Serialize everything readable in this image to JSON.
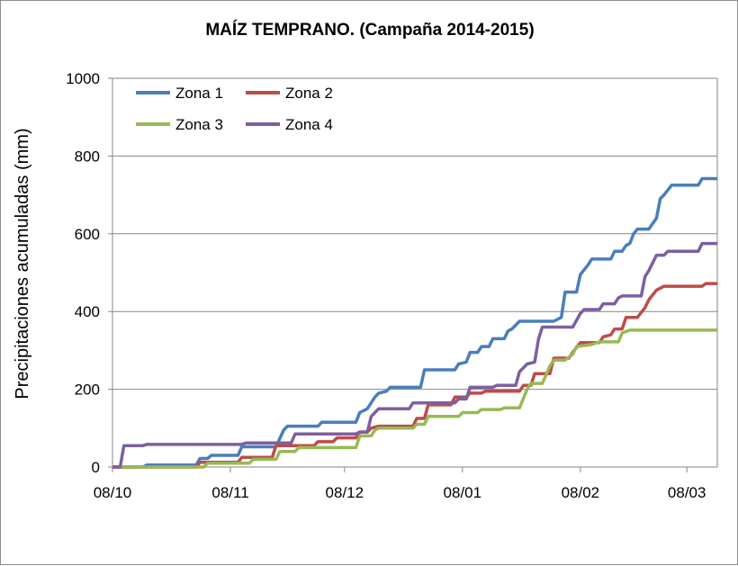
{
  "chart_data": {
    "type": "line",
    "title": "MAÍZ TEMPRANO. (Campaña 2014-2015)",
    "xlabel": "",
    "ylabel": "Precipitaciones acumuladas (mm)",
    "ylim": [
      0,
      1000
    ],
    "yticks": [
      0,
      200,
      400,
      600,
      800,
      1000
    ],
    "xlim": [
      "2014-10-08",
      "2015-03-16"
    ],
    "xticks": [
      "2014-10-08",
      "2014-11-08",
      "2014-12-08",
      "2015-01-08",
      "2015-02-08",
      "2015-03-08"
    ],
    "xtick_labels": [
      "08/10",
      "08/11",
      "08/12",
      "08/01",
      "08/02",
      "08/03"
    ],
    "grid": "horizontal",
    "legend": "top-left",
    "series": [
      {
        "name": "Zona 1",
        "color": "#4a7ebb",
        "points": [
          [
            "2014-10-08",
            0
          ],
          [
            "2014-10-16",
            0
          ],
          [
            "2014-10-17",
            5
          ],
          [
            "2014-10-30",
            5
          ],
          [
            "2014-10-31",
            22
          ],
          [
            "2014-11-02",
            22
          ],
          [
            "2014-11-03",
            30
          ],
          [
            "2014-11-10",
            30
          ],
          [
            "2014-11-11",
            52
          ],
          [
            "2014-11-20",
            52
          ],
          [
            "2014-11-22",
            95
          ],
          [
            "2014-11-23",
            105
          ],
          [
            "2014-12-01",
            105
          ],
          [
            "2014-12-02",
            115
          ],
          [
            "2014-12-11",
            115
          ],
          [
            "2014-12-12",
            140
          ],
          [
            "2014-12-14",
            150
          ],
          [
            "2014-12-16",
            180
          ],
          [
            "2014-12-17",
            190
          ],
          [
            "2014-12-19",
            195
          ],
          [
            "2014-12-20",
            205
          ],
          [
            "2014-12-28",
            205
          ],
          [
            "2014-12-29",
            250
          ],
          [
            "2015-01-06",
            250
          ],
          [
            "2015-01-07",
            265
          ],
          [
            "2015-01-09",
            270
          ],
          [
            "2015-01-10",
            295
          ],
          [
            "2015-01-12",
            295
          ],
          [
            "2015-01-13",
            310
          ],
          [
            "2015-01-15",
            310
          ],
          [
            "2015-01-16",
            330
          ],
          [
            "2015-01-19",
            330
          ],
          [
            "2015-01-20",
            350
          ],
          [
            "2015-01-21",
            355
          ],
          [
            "2015-01-23",
            375
          ],
          [
            "2015-02-01",
            375
          ],
          [
            "2015-02-03",
            385
          ],
          [
            "2015-02-04",
            450
          ],
          [
            "2015-02-07",
            450
          ],
          [
            "2015-02-08",
            495
          ],
          [
            "2015-02-10",
            520
          ],
          [
            "2015-02-11",
            535
          ],
          [
            "2015-02-16",
            535
          ],
          [
            "2015-02-17",
            555
          ],
          [
            "2015-02-19",
            555
          ],
          [
            "2015-02-20",
            570
          ],
          [
            "2015-02-21",
            575
          ],
          [
            "2015-02-22",
            600
          ],
          [
            "2015-02-23",
            612
          ],
          [
            "2015-02-26",
            612
          ],
          [
            "2015-02-28",
            640
          ],
          [
            "2015-03-01",
            690
          ],
          [
            "2015-03-02",
            700
          ],
          [
            "2015-03-04",
            725
          ],
          [
            "2015-03-11",
            725
          ],
          [
            "2015-03-12",
            742
          ],
          [
            "2015-03-16",
            742
          ]
        ]
      },
      {
        "name": "Zona 2",
        "color": "#be4b48",
        "points": [
          [
            "2014-10-08",
            0
          ],
          [
            "2014-10-30",
            0
          ],
          [
            "2014-10-31",
            12
          ],
          [
            "2014-11-10",
            12
          ],
          [
            "2014-11-11",
            25
          ],
          [
            "2014-11-19",
            25
          ],
          [
            "2014-11-20",
            55
          ],
          [
            "2014-11-30",
            55
          ],
          [
            "2014-12-01",
            65
          ],
          [
            "2014-12-05",
            65
          ],
          [
            "2014-12-06",
            75
          ],
          [
            "2014-12-11",
            75
          ],
          [
            "2014-12-12",
            90
          ],
          [
            "2014-12-14",
            90
          ],
          [
            "2014-12-15",
            100
          ],
          [
            "2014-12-17",
            105
          ],
          [
            "2014-12-26",
            105
          ],
          [
            "2014-12-27",
            125
          ],
          [
            "2014-12-29",
            125
          ],
          [
            "2014-12-30",
            160
          ],
          [
            "2015-01-05",
            160
          ],
          [
            "2015-01-06",
            180
          ],
          [
            "2015-01-09",
            180
          ],
          [
            "2015-01-10",
            190
          ],
          [
            "2015-01-13",
            190
          ],
          [
            "2015-01-14",
            195
          ],
          [
            "2015-01-23",
            195
          ],
          [
            "2015-01-24",
            210
          ],
          [
            "2015-01-26",
            210
          ],
          [
            "2015-01-27",
            240
          ],
          [
            "2015-01-31",
            240
          ],
          [
            "2015-02-01",
            280
          ],
          [
            "2015-02-05",
            280
          ],
          [
            "2015-02-06",
            295
          ],
          [
            "2015-02-08",
            320
          ],
          [
            "2015-02-13",
            320
          ],
          [
            "2015-02-14",
            335
          ],
          [
            "2015-02-16",
            340
          ],
          [
            "2015-02-17",
            355
          ],
          [
            "2015-02-19",
            355
          ],
          [
            "2015-02-20",
            385
          ],
          [
            "2015-02-23",
            385
          ],
          [
            "2015-02-25",
            410
          ],
          [
            "2015-02-26",
            430
          ],
          [
            "2015-02-28",
            455
          ],
          [
            "2015-03-02",
            465
          ],
          [
            "2015-03-12",
            465
          ],
          [
            "2015-03-13",
            472
          ],
          [
            "2015-03-16",
            472
          ]
        ]
      },
      {
        "name": "Zona 3",
        "color": "#98b954",
        "points": [
          [
            "2014-10-08",
            0
          ],
          [
            "2014-11-01",
            0
          ],
          [
            "2014-11-02",
            10
          ],
          [
            "2014-11-13",
            10
          ],
          [
            "2014-11-14",
            20
          ],
          [
            "2014-11-20",
            20
          ],
          [
            "2014-11-21",
            40
          ],
          [
            "2014-11-25",
            40
          ],
          [
            "2014-11-26",
            50
          ],
          [
            "2014-12-11",
            50
          ],
          [
            "2014-12-12",
            80
          ],
          [
            "2014-12-15",
            80
          ],
          [
            "2014-12-16",
            95
          ],
          [
            "2014-12-17",
            100
          ],
          [
            "2014-12-26",
            100
          ],
          [
            "2014-12-27",
            110
          ],
          [
            "2014-12-29",
            110
          ],
          [
            "2014-12-30",
            130
          ],
          [
            "2015-01-07",
            130
          ],
          [
            "2015-01-08",
            140
          ],
          [
            "2015-01-12",
            140
          ],
          [
            "2015-01-13",
            148
          ],
          [
            "2015-01-18",
            148
          ],
          [
            "2015-01-19",
            152
          ],
          [
            "2015-01-23",
            152
          ],
          [
            "2015-01-25",
            200
          ],
          [
            "2015-01-26",
            215
          ],
          [
            "2015-01-29",
            215
          ],
          [
            "2015-01-31",
            260
          ],
          [
            "2015-02-01",
            275
          ],
          [
            "2015-02-04",
            275
          ],
          [
            "2015-02-06",
            290
          ],
          [
            "2015-02-07",
            310
          ],
          [
            "2015-02-11",
            315
          ],
          [
            "2015-02-13",
            322
          ],
          [
            "2015-02-18",
            322
          ],
          [
            "2015-02-19",
            345
          ],
          [
            "2015-02-21",
            352
          ],
          [
            "2015-03-16",
            352
          ]
        ]
      },
      {
        "name": "Zona 4",
        "color": "#7d5fa0",
        "points": [
          [
            "2014-10-08",
            0
          ],
          [
            "2014-10-10",
            0
          ],
          [
            "2014-10-11",
            55
          ],
          [
            "2014-10-16",
            55
          ],
          [
            "2014-10-17",
            58
          ],
          [
            "2014-11-11",
            58
          ],
          [
            "2014-11-12",
            62
          ],
          [
            "2014-11-24",
            62
          ],
          [
            "2014-11-25",
            85
          ],
          [
            "2014-12-11",
            85
          ],
          [
            "2014-12-12",
            90
          ],
          [
            "2014-12-14",
            90
          ],
          [
            "2014-12-15",
            130
          ],
          [
            "2014-12-17",
            150
          ],
          [
            "2014-12-25",
            150
          ],
          [
            "2014-12-26",
            165
          ],
          [
            "2015-01-06",
            165
          ],
          [
            "2015-01-07",
            175
          ],
          [
            "2015-01-09",
            175
          ],
          [
            "2015-01-10",
            205
          ],
          [
            "2015-01-16",
            205
          ],
          [
            "2015-01-17",
            210
          ],
          [
            "2015-01-22",
            210
          ],
          [
            "2015-01-23",
            245
          ],
          [
            "2015-01-25",
            265
          ],
          [
            "2015-01-27",
            270
          ],
          [
            "2015-01-28",
            330
          ],
          [
            "2015-01-29",
            360
          ],
          [
            "2015-02-06",
            360
          ],
          [
            "2015-02-08",
            395
          ],
          [
            "2015-02-09",
            405
          ],
          [
            "2015-02-13",
            405
          ],
          [
            "2015-02-14",
            420
          ],
          [
            "2015-02-17",
            420
          ],
          [
            "2015-02-18",
            435
          ],
          [
            "2015-02-19",
            440
          ],
          [
            "2015-02-24",
            440
          ],
          [
            "2015-02-25",
            490
          ],
          [
            "2015-02-26",
            505
          ],
          [
            "2015-02-28",
            545
          ],
          [
            "2015-03-02",
            545
          ],
          [
            "2015-03-03",
            555
          ],
          [
            "2015-03-11",
            555
          ],
          [
            "2015-03-12",
            575
          ],
          [
            "2015-03-16",
            575
          ]
        ]
      }
    ]
  }
}
